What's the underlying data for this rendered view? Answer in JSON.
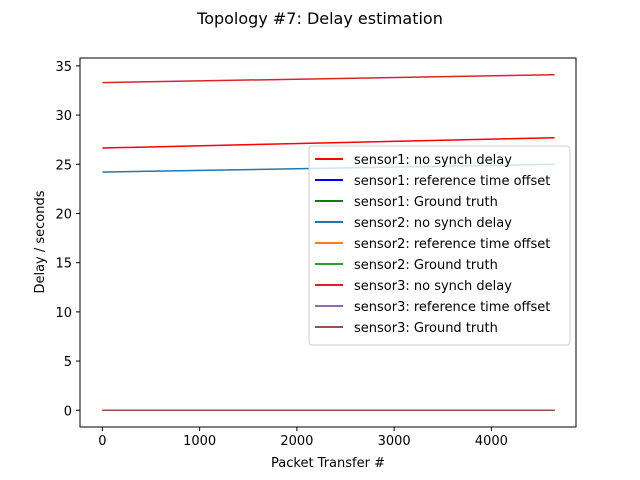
{
  "chart_data": {
    "type": "line",
    "title": "Topology #7: Delay estimation",
    "xlabel": "Packet Transfer #",
    "ylabel": "Delay / seconds",
    "xlim": [
      -230,
      4870
    ],
    "ylim": [
      -1.7,
      35.8
    ],
    "xticks": [
      0,
      1000,
      2000,
      3000,
      4000
    ],
    "yticks": [
      0,
      5,
      10,
      15,
      20,
      25,
      30,
      35
    ],
    "grid": false,
    "legend_position": "center-right",
    "series": [
      {
        "name": "sensor1: no synch delay",
        "color": "#ff0000",
        "x": [
          0,
          4650
        ],
        "y": [
          26.65,
          27.7
        ]
      },
      {
        "name": "sensor1: reference time offset",
        "color": "#0000ff",
        "x": [
          0,
          4650
        ],
        "y": [
          0.0,
          0.0
        ]
      },
      {
        "name": "sensor1: Ground truth",
        "color": "#008000",
        "x": [
          0,
          4650
        ],
        "y": [
          0.0,
          0.0
        ]
      },
      {
        "name": "sensor2: no synch delay",
        "color": "#1f77b4",
        "x": [
          0,
          4650
        ],
        "y": [
          24.2,
          25.0
        ]
      },
      {
        "name": "sensor2: reference time offset",
        "color": "#ff7f0e",
        "x": [
          0,
          4650
        ],
        "y": [
          0.0,
          0.0
        ]
      },
      {
        "name": "sensor2: Ground truth",
        "color": "#2ca02c",
        "x": [
          0,
          4650
        ],
        "y": [
          0.0,
          0.0
        ]
      },
      {
        "name": "sensor3: no synch delay",
        "color": "#d62728",
        "x": [
          0,
          4650
        ],
        "y": [
          33.3,
          34.1
        ]
      },
      {
        "name": "sensor3: reference time offset",
        "color": "#9467bd",
        "x": [
          0,
          4650
        ],
        "y": [
          0.0,
          0.0
        ]
      },
      {
        "name": "sensor3: Ground truth",
        "color": "#8c564b",
        "x": [
          0,
          4650
        ],
        "y": [
          0.0,
          0.0
        ]
      }
    ]
  }
}
